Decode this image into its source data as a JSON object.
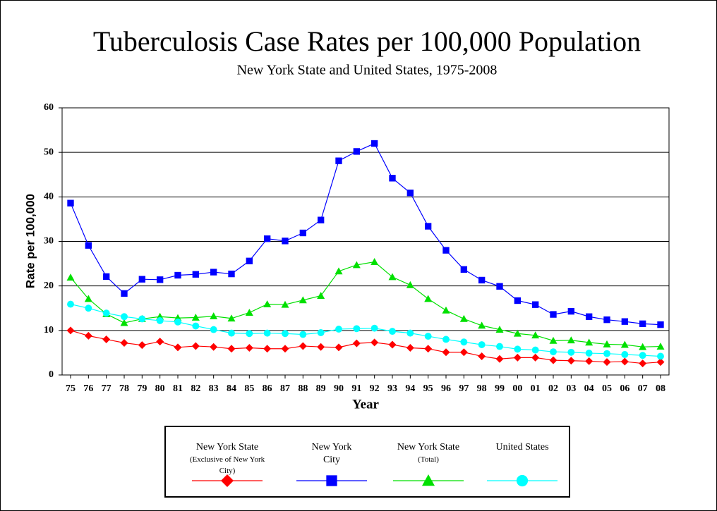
{
  "chart_data": {
    "type": "line",
    "title": "Tuberculosis Case Rates per 100,000 Population",
    "subtitle": "New York State and United States, 1975-2008",
    "y_label": "Rate per 100,000",
    "x_label": "Year",
    "categories": [
      "75",
      "76",
      "77",
      "78",
      "79",
      "80",
      "81",
      "82",
      "83",
      "84",
      "85",
      "86",
      "87",
      "88",
      "89",
      "90",
      "91",
      "92",
      "93",
      "94",
      "95",
      "96",
      "97",
      "98",
      "99",
      "00",
      "01",
      "02",
      "03",
      "04",
      "05",
      "06",
      "07",
      "08"
    ],
    "ylim": [
      0,
      60
    ],
    "yticks": [
      0,
      10,
      20,
      30,
      40,
      50,
      60
    ],
    "grid": true,
    "series": [
      {
        "name": "New York State",
        "name_detail": "(Exclusive of New York City)",
        "color": "#ff0000",
        "marker": "diamond",
        "values": [
          10.0,
          8.8,
          8.0,
          7.2,
          6.7,
          7.5,
          6.2,
          6.5,
          6.3,
          5.9,
          6.1,
          5.9,
          5.9,
          6.5,
          6.3,
          6.2,
          7.1,
          7.3,
          6.8,
          6.1,
          5.9,
          5.1,
          5.1,
          4.2,
          3.6,
          3.9,
          3.9,
          3.3,
          3.2,
          3.1,
          2.9,
          3.0,
          2.6,
          2.9
        ]
      },
      {
        "name": "New York City",
        "color": "#0000ff",
        "marker": "square",
        "values": [
          38.6,
          29.1,
          22.1,
          18.3,
          21.5,
          21.4,
          22.4,
          22.6,
          23.1,
          22.7,
          25.6,
          30.6,
          30.1,
          31.9,
          34.8,
          48.1,
          50.2,
          52.0,
          44.2,
          40.9,
          33.4,
          28.0,
          23.7,
          21.3,
          19.9,
          16.7,
          15.8,
          13.6,
          14.3,
          13.1,
          12.4,
          12.0,
          11.5,
          11.3
        ]
      },
      {
        "name": "New York State",
        "name_detail": "(Total)",
        "color": "#00e000",
        "marker": "triangle",
        "values": [
          21.9,
          17.1,
          13.7,
          11.7,
          12.6,
          13.1,
          12.8,
          12.9,
          13.2,
          12.7,
          14.0,
          15.9,
          15.8,
          16.8,
          17.8,
          23.3,
          24.7,
          25.4,
          22.0,
          20.2,
          17.1,
          14.5,
          12.6,
          11.1,
          10.2,
          9.3,
          8.9,
          7.7,
          7.8,
          7.3,
          6.9,
          6.8,
          6.3,
          6.4
        ]
      },
      {
        "name": "United States",
        "color": "#00ffff",
        "marker": "circle",
        "values": [
          15.9,
          15.0,
          13.9,
          13.1,
          12.6,
          12.2,
          11.9,
          11.0,
          10.2,
          9.4,
          9.3,
          9.4,
          9.3,
          9.1,
          9.5,
          10.3,
          10.4,
          10.5,
          9.8,
          9.4,
          8.7,
          8.0,
          7.4,
          6.8,
          6.4,
          5.8,
          5.6,
          5.2,
          5.1,
          4.9,
          4.8,
          4.6,
          4.4,
          4.2
        ]
      }
    ]
  }
}
